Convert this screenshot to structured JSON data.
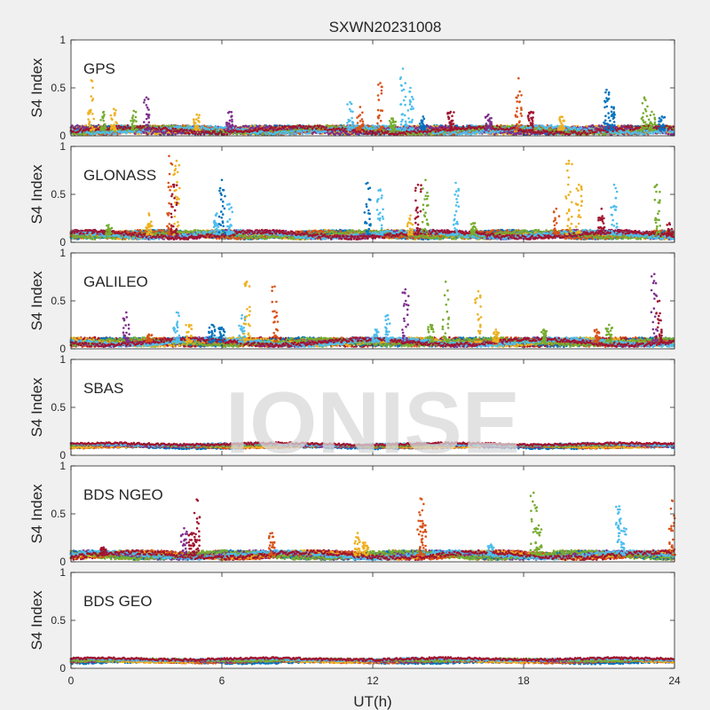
{
  "title": "SXWN20231008",
  "watermark": "IONISE",
  "xlabel": "UT(h)",
  "ylabel": "S4 Index",
  "x_ticks": [
    "0",
    "6",
    "12",
    "18",
    "24"
  ],
  "y_ticks": [
    "0",
    "0.5",
    "1"
  ],
  "colors": [
    "#0072BD",
    "#D95319",
    "#EDB120",
    "#7E2F8E",
    "#77AC30",
    "#4DBEEE",
    "#A2142F"
  ],
  "chart_data": [
    {
      "type": "scatter",
      "panel": "GPS",
      "xlim": [
        0,
        24
      ],
      "ylim": [
        0,
        1
      ],
      "grid": false,
      "baseline": 0.06,
      "spikes": [
        [
          0.8,
          0.58,
          2
        ],
        [
          1.3,
          0.25,
          4
        ],
        [
          1.7,
          0.28,
          2
        ],
        [
          2.5,
          0.26,
          4
        ],
        [
          3.0,
          0.4,
          3
        ],
        [
          5.0,
          0.22,
          2
        ],
        [
          6.3,
          0.25,
          3
        ],
        [
          11.1,
          0.35,
          5
        ],
        [
          11.5,
          0.3,
          1
        ],
        [
          12.3,
          0.55,
          1
        ],
        [
          12.8,
          0.18,
          4
        ],
        [
          13.2,
          0.7,
          5
        ],
        [
          13.5,
          0.5,
          5
        ],
        [
          14.0,
          0.2,
          0
        ],
        [
          15.1,
          0.25,
          6
        ],
        [
          16.6,
          0.22,
          3
        ],
        [
          17.8,
          0.6,
          1
        ],
        [
          18.3,
          0.25,
          6
        ],
        [
          19.5,
          0.2,
          2
        ],
        [
          21.3,
          0.48,
          0
        ],
        [
          21.5,
          0.3,
          0
        ],
        [
          22.8,
          0.4,
          4
        ],
        [
          23.1,
          0.25,
          4
        ],
        [
          23.5,
          0.2,
          0
        ]
      ]
    },
    {
      "type": "scatter",
      "panel": "GLONASS",
      "xlim": [
        0,
        24
      ],
      "ylim": [
        0,
        1
      ],
      "grid": false,
      "baseline": 0.08,
      "spikes": [
        [
          1.5,
          0.18,
          4
        ],
        [
          3.1,
          0.3,
          2
        ],
        [
          3.9,
          0.9,
          1
        ],
        [
          4.2,
          0.85,
          2
        ],
        [
          4.1,
          0.6,
          6
        ],
        [
          5.8,
          0.3,
          5
        ],
        [
          6.0,
          0.65,
          0
        ],
        [
          6.3,
          0.4,
          5
        ],
        [
          11.8,
          0.62,
          0
        ],
        [
          12.3,
          0.55,
          5
        ],
        [
          13.5,
          0.28,
          2
        ],
        [
          13.8,
          0.6,
          6
        ],
        [
          14.1,
          0.65,
          4
        ],
        [
          15.3,
          0.62,
          5
        ],
        [
          16.0,
          0.2,
          4
        ],
        [
          19.3,
          0.35,
          1
        ],
        [
          19.8,
          0.85,
          2
        ],
        [
          20.2,
          0.6,
          2
        ],
        [
          21.1,
          0.35,
          6
        ],
        [
          21.6,
          0.6,
          5
        ],
        [
          23.3,
          0.6,
          4
        ],
        [
          23.8,
          0.2,
          6
        ]
      ]
    },
    {
      "type": "scatter",
      "panel": "GALILEO",
      "xlim": [
        0,
        24
      ],
      "ylim": [
        0,
        1
      ],
      "grid": false,
      "baseline": 0.07,
      "spikes": [
        [
          2.2,
          0.38,
          3
        ],
        [
          3.1,
          0.15,
          1
        ],
        [
          4.2,
          0.38,
          5
        ],
        [
          4.7,
          0.25,
          2
        ],
        [
          5.6,
          0.25,
          0
        ],
        [
          6.0,
          0.22,
          0
        ],
        [
          6.8,
          0.35,
          5
        ],
        [
          7.0,
          0.7,
          2
        ],
        [
          8.1,
          0.65,
          1
        ],
        [
          12.1,
          0.2,
          5
        ],
        [
          12.6,
          0.35,
          5
        ],
        [
          13.3,
          0.62,
          3
        ],
        [
          14.3,
          0.25,
          4
        ],
        [
          14.9,
          0.7,
          4
        ],
        [
          16.2,
          0.6,
          2
        ],
        [
          16.9,
          0.2,
          2
        ],
        [
          18.8,
          0.2,
          4
        ],
        [
          20.9,
          0.2,
          1
        ],
        [
          21.4,
          0.25,
          4
        ],
        [
          23.2,
          0.78,
          3
        ],
        [
          23.4,
          0.5,
          6
        ]
      ]
    },
    {
      "type": "scatter",
      "panel": "SBAS",
      "xlim": [
        0,
        24
      ],
      "ylim": [
        0,
        1
      ],
      "grid": false,
      "baseline": 0.1,
      "spikes": []
    },
    {
      "type": "scatter",
      "panel": "BDS NGEO",
      "xlim": [
        0,
        24
      ],
      "ylim": [
        0,
        1
      ],
      "grid": false,
      "baseline": 0.07,
      "spikes": [
        [
          1.3,
          0.15,
          6
        ],
        [
          4.5,
          0.35,
          3
        ],
        [
          4.8,
          0.3,
          6
        ],
        [
          5.0,
          0.65,
          6
        ],
        [
          8.0,
          0.3,
          1
        ],
        [
          11.4,
          0.3,
          2
        ],
        [
          11.7,
          0.2,
          2
        ],
        [
          13.9,
          0.66,
          1
        ],
        [
          14.0,
          0.4,
          1
        ],
        [
          16.7,
          0.18,
          5
        ],
        [
          18.4,
          0.72,
          4
        ],
        [
          18.6,
          0.38,
          4
        ],
        [
          21.8,
          0.58,
          5
        ],
        [
          22.0,
          0.35,
          5
        ],
        [
          23.9,
          0.64,
          1
        ]
      ]
    },
    {
      "type": "scatter",
      "panel": "BDS GEO",
      "xlim": [
        0,
        24
      ],
      "ylim": [
        0,
        1
      ],
      "grid": false,
      "baseline": 0.08,
      "spikes": []
    }
  ]
}
